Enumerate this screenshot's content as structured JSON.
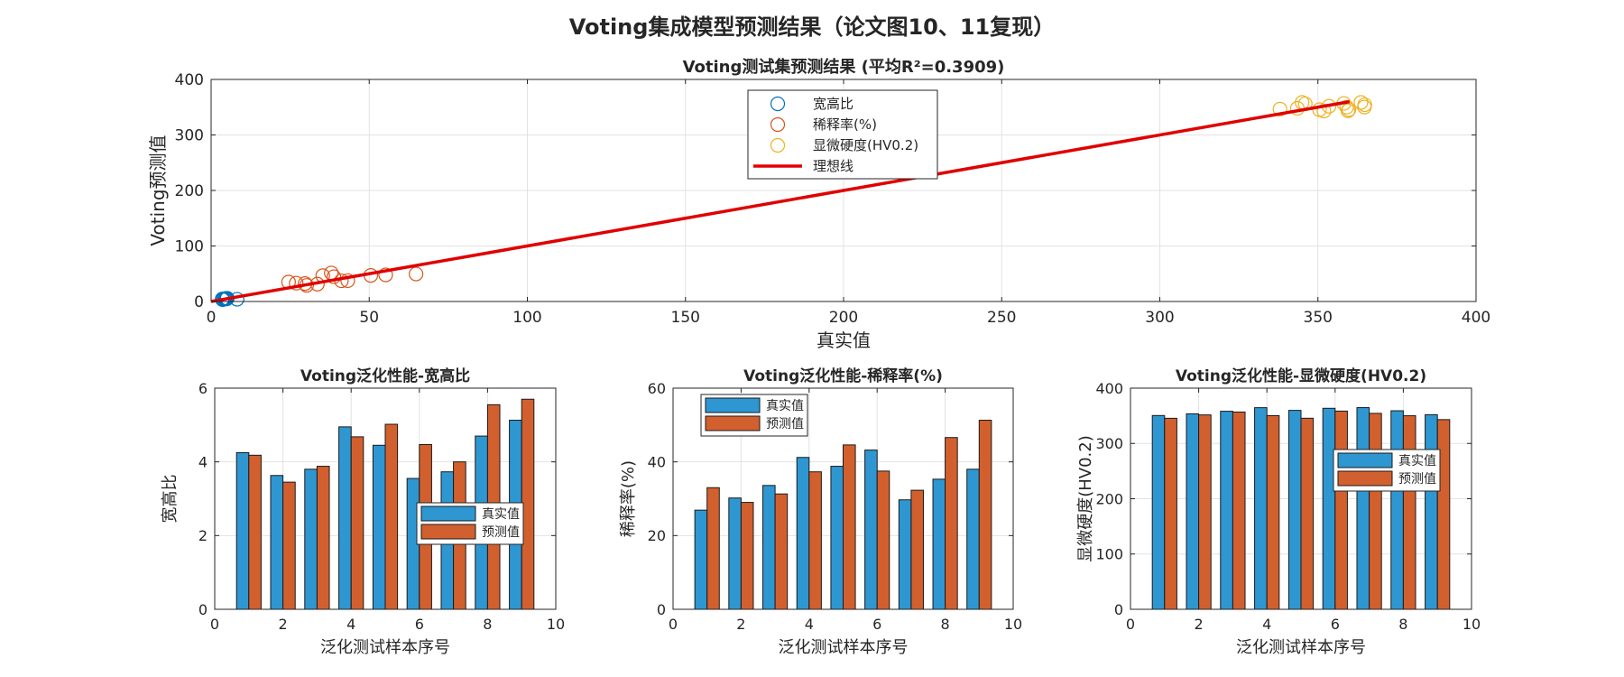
{
  "figure": {
    "title": "Voting集成模型预测结果（论文图10、11复现）"
  },
  "colors": {
    "blue": "#0072BD",
    "orange": "#D95319",
    "yellow": "#EDB120",
    "ideal": "#E00000",
    "bar_true": "#2E97D2",
    "bar_pred": "#D2602E"
  },
  "chart_data": [
    {
      "type": "scatter",
      "title": "Voting测试集预测结果 (平均R²=0.3909)",
      "xlabel": "真实值",
      "ylabel": "Voting预测值",
      "xlim": [
        0,
        400
      ],
      "ylim": [
        0,
        400
      ],
      "xticks": [
        0,
        50,
        100,
        150,
        200,
        250,
        300,
        350,
        400
      ],
      "yticks": [
        0,
        100,
        200,
        300,
        400
      ],
      "grid": true,
      "legend_position": "top-center",
      "series": [
        {
          "name": "宽高比",
          "color": "#0072BD",
          "x": [
            4.2,
            3.6,
            3.8,
            4.9,
            4.4,
            3.5,
            3.7,
            4.7,
            5.1,
            8.2
          ],
          "y": [
            4.2,
            3.5,
            3.9,
            4.7,
            5.0,
            4.5,
            4.0,
            5.5,
            5.7,
            4.0
          ]
        },
        {
          "name": "稀释率(%)",
          "color": "#D95319",
          "x": [
            26.9,
            30.2,
            33.6,
            41.2,
            38.8,
            43.2,
            29.7,
            35.3,
            38.0,
            55.2,
            64.8,
            24.5,
            50.5
          ],
          "y": [
            33.0,
            29.0,
            31.3,
            37.3,
            44.6,
            37.5,
            32.3,
            46.6,
            51.3,
            48.0,
            49.5,
            35.0,
            47.0
          ]
        },
        {
          "name": "显微硬度(HV0.2)",
          "color": "#EDB120",
          "x": [
            350.5,
            353.5,
            358.2,
            364.7,
            359.8,
            363.6,
            364.8,
            359.1,
            351.9,
            346.0,
            338.0,
            343.5,
            345.0,
            359.5
          ],
          "y": [
            345.5,
            351.6,
            356.8,
            350.2,
            345.6,
            358.5,
            354.4,
            350.1,
            343.1,
            356.0,
            346.5,
            348.0,
            358.5,
            343.5
          ]
        },
        {
          "name": "理想线",
          "type": "line",
          "color": "#E00000",
          "x": [
            0,
            360
          ],
          "y": [
            0,
            360
          ]
        }
      ]
    },
    {
      "type": "bar",
      "title": "Voting泛化性能-宽高比",
      "xlabel": "泛化测试样本序号",
      "ylabel": "宽高比",
      "xlim": [
        0,
        10
      ],
      "ylim": [
        0,
        6
      ],
      "xticks": [
        0,
        2,
        4,
        6,
        8,
        10
      ],
      "yticks": [
        0,
        2,
        4,
        6
      ],
      "grid": true,
      "legend_position": "right-middle",
      "categories": [
        1,
        2,
        3,
        4,
        5,
        6,
        7,
        8,
        9
      ],
      "series": [
        {
          "name": "真实值",
          "values": [
            4.25,
            3.63,
            3.8,
            4.95,
            4.45,
            3.55,
            3.73,
            4.7,
            5.13
          ]
        },
        {
          "name": "预测值",
          "values": [
            4.18,
            3.45,
            3.88,
            4.68,
            5.02,
            4.47,
            4.0,
            5.55,
            5.7
          ]
        }
      ]
    },
    {
      "type": "bar",
      "title": "Voting泛化性能-稀释率(%)",
      "xlabel": "泛化测试样本序号",
      "ylabel": "稀释率(%)",
      "xlim": [
        0,
        10
      ],
      "ylim": [
        0,
        60
      ],
      "xticks": [
        0,
        2,
        4,
        6,
        8,
        10
      ],
      "yticks": [
        0,
        20,
        40,
        60
      ],
      "grid": true,
      "legend_position": "top-left",
      "categories": [
        1,
        2,
        3,
        4,
        5,
        6,
        7,
        8,
        9
      ],
      "series": [
        {
          "name": "真实值",
          "values": [
            26.9,
            30.2,
            33.6,
            41.2,
            38.8,
            43.2,
            29.7,
            35.3,
            38.0
          ]
        },
        {
          "name": "预测值",
          "values": [
            33.0,
            29.0,
            31.3,
            37.3,
            44.6,
            37.5,
            32.3,
            46.6,
            51.3
          ]
        }
      ]
    },
    {
      "type": "bar",
      "title": "Voting泛化性能-显微硬度(HV0.2)",
      "xlabel": "泛化测试样本序号",
      "ylabel": "显微硬度(HV0.2)",
      "xlim": [
        0,
        10
      ],
      "ylim": [
        0,
        400
      ],
      "xticks": [
        0,
        2,
        4,
        6,
        8,
        10
      ],
      "yticks": [
        0,
        100,
        200,
        300,
        400
      ],
      "grid": true,
      "legend_position": "right-middle",
      "categories": [
        1,
        2,
        3,
        4,
        5,
        6,
        7,
        8,
        9
      ],
      "series": [
        {
          "name": "真实值",
          "values": [
            350.5,
            353.5,
            358.2,
            364.7,
            359.8,
            363.6,
            364.8,
            359.1,
            351.9
          ]
        },
        {
          "name": "预测值",
          "values": [
            345.5,
            351.6,
            356.8,
            350.2,
            345.6,
            358.5,
            354.4,
            350.1,
            343.1
          ]
        }
      ]
    }
  ]
}
